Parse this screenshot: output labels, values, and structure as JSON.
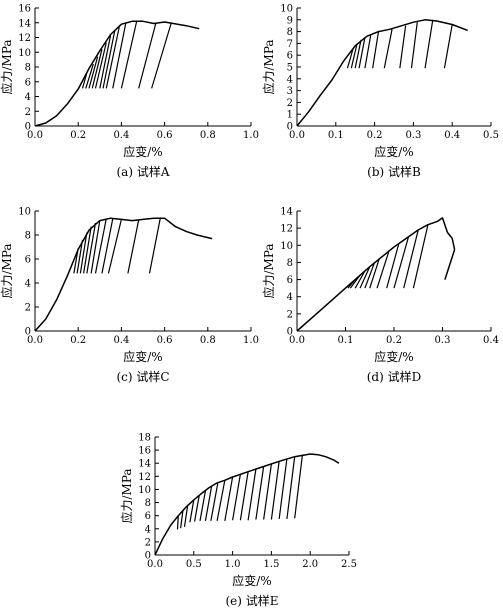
{
  "charts": [
    {
      "caption": "(a) 试样A",
      "xlabel": "应变/%",
      "ylabel": "应力/MPa",
      "xlim": [
        0,
        1.0
      ],
      "ylim": [
        0,
        16
      ],
      "xticks": [
        0,
        0.2,
        0.4,
        0.6,
        0.8,
        1.0
      ],
      "xtick_labels": [
        "0.0",
        "0.2",
        "0.4",
        "0.6",
        "0.8",
        "1.0"
      ],
      "yticks": [
        0,
        2,
        4,
        6,
        8,
        10,
        12,
        14,
        16
      ],
      "ytick_labels": [
        "0",
        "2",
        "4",
        "6",
        "8",
        "10",
        "12",
        "14",
        "16"
      ]
    },
    {
      "caption": "(b) 试样B",
      "xlabel": "应变/%",
      "ylabel": "应力/MPa",
      "xlim": [
        0,
        0.5
      ],
      "ylim": [
        0,
        10
      ],
      "xticks": [
        0,
        0.1,
        0.2,
        0.3,
        0.4,
        0.5
      ],
      "xtick_labels": [
        "0.0",
        "0.1",
        "0.2",
        "0.3",
        "0.4",
        "0.5"
      ],
      "yticks": [
        0,
        1,
        2,
        3,
        4,
        5,
        6,
        7,
        8,
        9,
        10
      ],
      "ytick_labels": [
        "0",
        "1",
        "2",
        "3",
        "4",
        "5",
        "6",
        "7",
        "8",
        "9",
        "10"
      ]
    },
    {
      "caption": "(c) 试样C",
      "xlabel": "应变/%",
      "ylabel": "应力/MPa",
      "xlim": [
        0,
        1.0
      ],
      "ylim": [
        0,
        10
      ],
      "xticks": [
        0,
        0.2,
        0.4,
        0.6,
        0.8,
        1.0
      ],
      "xtick_labels": [
        "0.0",
        "0.2",
        "0.4",
        "0.6",
        "0.8",
        "1.0"
      ],
      "yticks": [
        0,
        2,
        4,
        6,
        8,
        10
      ],
      "ytick_labels": [
        "0",
        "2",
        "4",
        "6",
        "8",
        "10"
      ]
    },
    {
      "caption": "(d) 试样D",
      "xlabel": "应变/%",
      "ylabel": "应力/MPa",
      "xlim": [
        0,
        0.4
      ],
      "ylim": [
        0,
        14
      ],
      "xticks": [
        0,
        0.1,
        0.2,
        0.3,
        0.4
      ],
      "xtick_labels": [
        "0.0",
        "0.1",
        "0.2",
        "0.3",
        "0.4"
      ],
      "yticks": [
        0,
        2,
        4,
        6,
        8,
        10,
        12,
        14
      ],
      "ytick_labels": [
        "0",
        "2",
        "4",
        "6",
        "8",
        "10",
        "12",
        "14"
      ]
    },
    {
      "caption": "(e) 试样E",
      "xlabel": "应变/%",
      "ylabel": "应力/MPa",
      "xlim": [
        0,
        2.5
      ],
      "ylim": [
        0,
        18
      ],
      "xticks": [
        0,
        0.5,
        1.0,
        1.5,
        2.0,
        2.5
      ],
      "xtick_labels": [
        "0.0",
        "0.5",
        "1.0",
        "1.5",
        "2.0",
        "2.5"
      ],
      "yticks": [
        0,
        2,
        4,
        6,
        8,
        10,
        12,
        14,
        16,
        18
      ],
      "ytick_labels": [
        "0",
        "2",
        "4",
        "6",
        "8",
        "10",
        "12",
        "14",
        "16",
        "18"
      ]
    }
  ],
  "chart_data": [
    {
      "type": "line",
      "envelope": [
        [
          0,
          0
        ],
        [
          0.05,
          0.4
        ],
        [
          0.1,
          1.4
        ],
        [
          0.15,
          3
        ],
        [
          0.2,
          5
        ],
        [
          0.25,
          7.8
        ],
        [
          0.3,
          10.2
        ],
        [
          0.35,
          12.4
        ],
        [
          0.4,
          13.8
        ],
        [
          0.45,
          14.2
        ],
        [
          0.5,
          14.2
        ],
        [
          0.55,
          13.9
        ],
        [
          0.6,
          14.1
        ],
        [
          0.7,
          13.6
        ],
        [
          0.76,
          13.2
        ]
      ],
      "cycles": [
        {
          "unload_from": [
            0.24,
            7.2
          ],
          "to": [
            0.22,
            5.1
          ]
        },
        {
          "unload_from": [
            0.27,
            8.4
          ],
          "to": [
            0.235,
            5.1
          ]
        },
        {
          "unload_from": [
            0.29,
            9.4
          ],
          "to": [
            0.25,
            5.1
          ]
        },
        {
          "unload_from": [
            0.31,
            10.4
          ],
          "to": [
            0.265,
            5.1
          ]
        },
        {
          "unload_from": [
            0.33,
            11.3
          ],
          "to": [
            0.28,
            5.1
          ]
        },
        {
          "unload_from": [
            0.35,
            12.3
          ],
          "to": [
            0.3,
            5.1
          ]
        },
        {
          "unload_from": [
            0.37,
            13.0
          ],
          "to": [
            0.315,
            5.1
          ]
        },
        {
          "unload_from": [
            0.39,
            13.4
          ],
          "to": [
            0.33,
            5.1
          ]
        },
        {
          "unload_from": [
            0.42,
            13.9
          ],
          "to": [
            0.36,
            5.1
          ]
        },
        {
          "unload_from": [
            0.47,
            14.1
          ],
          "to": [
            0.4,
            5.1
          ]
        },
        {
          "unload_from": [
            0.56,
            14.0
          ],
          "to": [
            0.48,
            5.1
          ]
        },
        {
          "unload_from": [
            0.63,
            13.9
          ],
          "to": [
            0.54,
            5.1
          ]
        }
      ]
    },
    {
      "type": "line",
      "envelope": [
        [
          0,
          0
        ],
        [
          0.03,
          1.2
        ],
        [
          0.06,
          2.6
        ],
        [
          0.09,
          3.9
        ],
        [
          0.12,
          5.5
        ],
        [
          0.15,
          6.8
        ],
        [
          0.18,
          7.6
        ],
        [
          0.21,
          8.0
        ],
        [
          0.24,
          8.2
        ],
        [
          0.27,
          8.5
        ],
        [
          0.3,
          8.8
        ],
        [
          0.33,
          9.0
        ],
        [
          0.36,
          8.9
        ],
        [
          0.4,
          8.6
        ],
        [
          0.44,
          8.1
        ]
      ],
      "cycles": [
        {
          "unload_from": [
            0.145,
            6.6
          ],
          "to": [
            0.13,
            4.9
          ]
        },
        {
          "unload_from": [
            0.155,
            7.0
          ],
          "to": [
            0.14,
            4.9
          ]
        },
        {
          "unload_from": [
            0.165,
            7.3
          ],
          "to": [
            0.15,
            4.9
          ]
        },
        {
          "unload_from": [
            0.175,
            7.5
          ],
          "to": [
            0.16,
            4.9
          ]
        },
        {
          "unload_from": [
            0.19,
            7.7
          ],
          "to": [
            0.175,
            4.9
          ]
        },
        {
          "unload_from": [
            0.21,
            8.0
          ],
          "to": [
            0.195,
            4.9
          ]
        },
        {
          "unload_from": [
            0.245,
            8.2
          ],
          "to": [
            0.225,
            4.9
          ]
        },
        {
          "unload_from": [
            0.28,
            8.5
          ],
          "to": [
            0.265,
            4.9
          ]
        },
        {
          "unload_from": [
            0.31,
            8.8
          ],
          "to": [
            0.295,
            4.9
          ]
        },
        {
          "unload_from": [
            0.35,
            9.0
          ],
          "to": [
            0.33,
            4.9
          ]
        },
        {
          "unload_from": [
            0.4,
            8.6
          ],
          "to": [
            0.38,
            4.9
          ]
        }
      ]
    },
    {
      "type": "line",
      "envelope": [
        [
          0,
          0
        ],
        [
          0.05,
          1.0
        ],
        [
          0.1,
          2.6
        ],
        [
          0.15,
          4.6
        ],
        [
          0.2,
          6.8
        ],
        [
          0.25,
          8.4
        ],
        [
          0.3,
          9.2
        ],
        [
          0.35,
          9.4
        ],
        [
          0.4,
          9.3
        ],
        [
          0.45,
          9.2
        ],
        [
          0.5,
          9.3
        ],
        [
          0.55,
          9.4
        ],
        [
          0.6,
          9.4
        ],
        [
          0.65,
          8.7
        ],
        [
          0.7,
          8.3
        ],
        [
          0.75,
          8.0
        ],
        [
          0.82,
          7.7
        ]
      ],
      "cycles": [
        {
          "unload_from": [
            0.2,
            6.9
          ],
          "to": [
            0.18,
            4.8
          ]
        },
        {
          "unload_from": [
            0.22,
            7.6
          ],
          "to": [
            0.195,
            4.8
          ]
        },
        {
          "unload_from": [
            0.24,
            8.2
          ],
          "to": [
            0.21,
            4.8
          ]
        },
        {
          "unload_from": [
            0.26,
            8.7
          ],
          "to": [
            0.225,
            4.8
          ]
        },
        {
          "unload_from": [
            0.28,
            9.0
          ],
          "to": [
            0.24,
            4.8
          ]
        },
        {
          "unload_from": [
            0.3,
            9.2
          ],
          "to": [
            0.26,
            4.8
          ]
        },
        {
          "unload_from": [
            0.33,
            9.35
          ],
          "to": [
            0.28,
            4.8
          ]
        },
        {
          "unload_from": [
            0.36,
            9.35
          ],
          "to": [
            0.31,
            4.8
          ]
        },
        {
          "unload_from": [
            0.4,
            9.3
          ],
          "to": [
            0.34,
            4.8
          ]
        },
        {
          "unload_from": [
            0.48,
            9.25
          ],
          "to": [
            0.43,
            4.8
          ]
        },
        {
          "unload_from": [
            0.58,
            9.4
          ],
          "to": [
            0.53,
            4.8
          ]
        }
      ]
    },
    {
      "type": "line",
      "envelope": [
        [
          0,
          0
        ],
        [
          0.05,
          2.5
        ],
        [
          0.1,
          5.0
        ],
        [
          0.15,
          7.5
        ],
        [
          0.2,
          9.8
        ],
        [
          0.25,
          11.8
        ],
        [
          0.27,
          12.4
        ],
        [
          0.29,
          12.8
        ],
        [
          0.3,
          13.2
        ],
        [
          0.31,
          11.5
        ],
        [
          0.32,
          10.8
        ],
        [
          0.325,
          9.5
        ]
      ],
      "tail": [
        [
          0.325,
          9.5
        ],
        [
          0.305,
          6.0
        ]
      ],
      "cycles": [
        {
          "unload_from": [
            0.11,
            5.5
          ],
          "to": [
            0.1,
            5.0
          ]
        },
        {
          "unload_from": [
            0.12,
            6.0
          ],
          "to": [
            0.105,
            5.0
          ]
        },
        {
          "unload_from": [
            0.13,
            6.5
          ],
          "to": [
            0.11,
            5.0
          ]
        },
        {
          "unload_from": [
            0.14,
            7.0
          ],
          "to": [
            0.12,
            5.0
          ]
        },
        {
          "unload_from": [
            0.15,
            7.5
          ],
          "to": [
            0.13,
            5.0
          ]
        },
        {
          "unload_from": [
            0.16,
            8.0
          ],
          "to": [
            0.14,
            5.0
          ]
        },
        {
          "unload_from": [
            0.17,
            8.5
          ],
          "to": [
            0.15,
            5.0
          ]
        },
        {
          "unload_from": [
            0.19,
            9.4
          ],
          "to": [
            0.165,
            5.0
          ]
        },
        {
          "unload_from": [
            0.21,
            10.2
          ],
          "to": [
            0.185,
            5.0
          ]
        },
        {
          "unload_from": [
            0.23,
            11.0
          ],
          "to": [
            0.2,
            5.0
          ]
        },
        {
          "unload_from": [
            0.25,
            11.8
          ],
          "to": [
            0.22,
            5.0
          ]
        },
        {
          "unload_from": [
            0.27,
            12.4
          ],
          "to": [
            0.24,
            5.0
          ]
        }
      ]
    },
    {
      "type": "line",
      "envelope": [
        [
          0,
          0
        ],
        [
          0.1,
          2.5
        ],
        [
          0.2,
          4.5
        ],
        [
          0.3,
          6.0
        ],
        [
          0.4,
          7.3
        ],
        [
          0.5,
          8.4
        ],
        [
          0.6,
          9.4
        ],
        [
          0.7,
          10.3
        ],
        [
          0.8,
          11.0
        ],
        [
          0.9,
          11.4
        ],
        [
          1.0,
          11.9
        ],
        [
          1.2,
          12.7
        ],
        [
          1.4,
          13.5
        ],
        [
          1.6,
          14.3
        ],
        [
          1.8,
          15.0
        ],
        [
          2.0,
          15.4
        ],
        [
          2.1,
          15.3
        ],
        [
          2.2,
          15.0
        ],
        [
          2.3,
          14.5
        ],
        [
          2.37,
          14.0
        ]
      ],
      "cycles": [
        {
          "unload_from": [
            0.3,
            6.0
          ],
          "to": [
            0.29,
            3.9
          ]
        },
        {
          "unload_from": [
            0.36,
            6.8
          ],
          "to": [
            0.33,
            4.1
          ]
        },
        {
          "unload_from": [
            0.42,
            7.5
          ],
          "to": [
            0.38,
            4.3
          ]
        },
        {
          "unload_from": [
            0.5,
            8.4
          ],
          "to": [
            0.45,
            5.0
          ]
        },
        {
          "unload_from": [
            0.57,
            9.1
          ],
          "to": [
            0.51,
            5.1
          ]
        },
        {
          "unload_from": [
            0.65,
            9.8
          ],
          "to": [
            0.58,
            5.2
          ]
        },
        {
          "unload_from": [
            0.73,
            10.5
          ],
          "to": [
            0.65,
            5.2
          ]
        },
        {
          "unload_from": [
            0.81,
            11.0
          ],
          "to": [
            0.72,
            5.2
          ]
        },
        {
          "unload_from": [
            0.9,
            11.4
          ],
          "to": [
            0.8,
            5.2
          ]
        },
        {
          "unload_from": [
            1.0,
            11.9
          ],
          "to": [
            0.9,
            5.2
          ]
        },
        {
          "unload_from": [
            1.1,
            12.3
          ],
          "to": [
            1.0,
            5.3
          ]
        },
        {
          "unload_from": [
            1.2,
            12.7
          ],
          "to": [
            1.1,
            5.3
          ]
        },
        {
          "unload_from": [
            1.3,
            13.1
          ],
          "to": [
            1.2,
            5.3
          ]
        },
        {
          "unload_from": [
            1.4,
            13.5
          ],
          "to": [
            1.3,
            5.4
          ]
        },
        {
          "unload_from": [
            1.5,
            13.9
          ],
          "to": [
            1.4,
            5.4
          ]
        },
        {
          "unload_from": [
            1.6,
            14.3
          ],
          "to": [
            1.5,
            5.4
          ]
        },
        {
          "unload_from": [
            1.7,
            14.7
          ],
          "to": [
            1.6,
            5.5
          ]
        },
        {
          "unload_from": [
            1.8,
            15.0
          ],
          "to": [
            1.7,
            5.5
          ]
        },
        {
          "unload_from": [
            1.9,
            15.3
          ],
          "to": [
            1.8,
            5.6
          ]
        }
      ]
    }
  ]
}
